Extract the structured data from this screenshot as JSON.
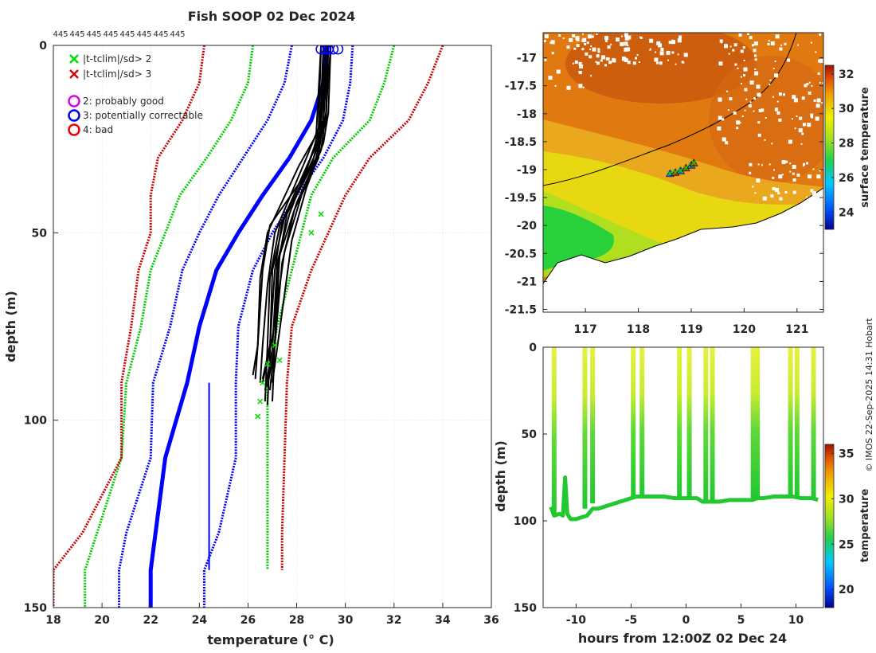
{
  "chart_data": [
    {
      "type": "line",
      "title": "Fish SOOP 02 Dec 2024",
      "xlabel": "temperature (° C)",
      "ylabel": "depth (m)",
      "xlim": [
        18,
        36
      ],
      "ylim": [
        150,
        0
      ],
      "x_ticks": [
        "18",
        "20",
        "22",
        "24",
        "26",
        "28",
        "30",
        "32",
        "34",
        "36"
      ],
      "y_ticks": [
        "0",
        "50",
        "100",
        "150"
      ],
      "top_labels": [
        "445",
        "445",
        "445",
        "445",
        "445",
        "445",
        "445",
        "445"
      ],
      "legend": [
        {
          "symbol": "×",
          "color": "#00dd00",
          "label": "|t-tclim|/sd> 2"
        },
        {
          "symbol": "×",
          "color": "#dd0000",
          "label": "|t-tclim|/sd> 3"
        },
        {
          "symbol": "○",
          "color": "#e000e0",
          "label": "2: probably good"
        },
        {
          "symbol": "○",
          "color": "#0000ee",
          "label": "3: potentially correctable"
        },
        {
          "symbol": "○",
          "color": "#ee0000",
          "label": "4: bad"
        }
      ],
      "climatology": [
        {
          "name": "clim_mean",
          "color": "#0000ff",
          "style": "solid",
          "x": [
            29.2,
            29.1,
            28.6,
            27.7,
            26.6,
            25.6,
            24.7,
            24.0,
            23.5,
            22.6,
            22.0,
            22.0
          ],
          "depth": [
            0,
            10,
            20,
            30,
            40,
            50,
            60,
            75,
            90,
            110,
            140,
            150
          ]
        },
        {
          "name": "clim_minus1sd",
          "color": "#0000ff",
          "style": "dashed",
          "x": [
            27.8,
            27.5,
            26.8,
            25.8,
            24.8,
            24.0,
            23.3,
            22.8,
            22.1,
            22.0,
            21.0,
            20.7,
            20.7
          ],
          "depth": [
            0,
            10,
            20,
            30,
            40,
            50,
            60,
            75,
            90,
            110,
            130,
            140,
            150
          ]
        },
        {
          "name": "clim_plus1sd",
          "color": "#0000ff",
          "style": "dashed",
          "x": [
            30.3,
            30.2,
            29.9,
            29.1,
            28.0,
            27.0,
            26.2,
            25.6,
            25.5,
            25.5,
            24.8,
            24.2,
            24.2
          ],
          "depth": [
            0,
            10,
            20,
            30,
            40,
            50,
            60,
            75,
            90,
            110,
            130,
            140,
            150
          ]
        },
        {
          "name": "clim_minus2sd",
          "color": "#00cc00",
          "style": "dashed",
          "x": [
            26.2,
            26.0,
            25.3,
            24.3,
            23.2,
            22.6,
            22.0,
            21.6,
            21.0,
            20.8,
            19.8,
            19.3,
            19.3
          ],
          "depth": [
            0,
            10,
            20,
            30,
            40,
            50,
            60,
            75,
            90,
            110,
            130,
            140,
            150
          ]
        },
        {
          "name": "clim_plus2sd",
          "color": "#00cc00",
          "style": "dashed",
          "x": [
            32.0,
            31.6,
            31.0,
            29.5,
            28.6,
            28.2,
            27.8,
            27.2,
            26.8,
            26.8,
            26.8,
            26.8
          ],
          "depth": [
            0,
            10,
            20,
            30,
            40,
            50,
            60,
            75,
            90,
            110,
            130,
            140
          ]
        },
        {
          "name": "clim_minus3sd",
          "color": "#cc0000",
          "style": "dashed",
          "x": [
            24.2,
            24.0,
            23.3,
            22.3,
            22.0,
            22.0,
            21.5,
            21.2,
            20.8,
            20.8,
            19.2,
            18.0,
            18.0
          ],
          "depth": [
            0,
            10,
            20,
            30,
            40,
            50,
            60,
            75,
            90,
            110,
            130,
            140,
            150
          ]
        },
        {
          "name": "clim_plus3sd",
          "color": "#cc0000",
          "style": "dashed",
          "x": [
            34.0,
            33.4,
            32.6,
            31.0,
            30.0,
            29.3,
            28.6,
            27.8,
            27.6,
            27.5,
            27.4,
            27.4
          ],
          "depth": [
            0,
            10,
            20,
            30,
            40,
            50,
            60,
            75,
            90,
            110,
            130,
            140
          ]
        }
      ],
      "profiles": [
        {
          "x": [
            29.2,
            29.1,
            28.8,
            27.6,
            27.2,
            27.1,
            27.0
          ],
          "depth": [
            0,
            20,
            30,
            45,
            60,
            80,
            95
          ]
        },
        {
          "x": [
            29.3,
            29.2,
            28.6,
            27.3,
            26.9,
            26.8,
            26.7
          ],
          "depth": [
            0,
            20,
            32,
            48,
            62,
            80,
            95
          ]
        },
        {
          "x": [
            29.4,
            29.2,
            29.0,
            27.9,
            27.4,
            27.1,
            26.9
          ],
          "depth": [
            0,
            18,
            28,
            44,
            58,
            80,
            92
          ]
        },
        {
          "x": [
            29.0,
            28.9,
            28.4,
            27.1,
            26.8,
            26.6,
            26.5
          ],
          "depth": [
            0,
            22,
            30,
            50,
            64,
            80,
            90
          ]
        },
        {
          "x": [
            29.1,
            29.0,
            28.9,
            28.2,
            27.5,
            27.0,
            26.6
          ],
          "depth": [
            0,
            15,
            30,
            40,
            55,
            78,
            90
          ]
        },
        {
          "x": [
            29.3,
            29.1,
            28.3,
            26.9,
            26.6,
            26.4,
            26.3
          ],
          "depth": [
            0,
            20,
            35,
            48,
            60,
            80,
            89
          ]
        },
        {
          "x": [
            29.2,
            29.0,
            28.7,
            27.5,
            27.0,
            26.9,
            26.8
          ],
          "depth": [
            0,
            22,
            30,
            46,
            60,
            82,
            96
          ]
        },
        {
          "x": [
            29.4,
            29.3,
            29.1,
            28.4,
            27.8,
            27.3,
            27.0
          ],
          "depth": [
            0,
            18,
            26,
            38,
            52,
            76,
            90
          ]
        },
        {
          "x": [
            29.0,
            28.8,
            28.1,
            26.8,
            26.5,
            26.4,
            26.2
          ],
          "depth": [
            0,
            24,
            32,
            50,
            62,
            80,
            88
          ]
        },
        {
          "x": [
            29.2,
            29.1,
            28.9,
            28.0,
            27.3,
            27.1,
            26.8
          ],
          "depth": [
            0,
            20,
            29,
            42,
            56,
            80,
            91
          ]
        },
        {
          "x": [
            29.3,
            29.2,
            28.5,
            27.4,
            27.1,
            26.9,
            26.6
          ],
          "depth": [
            0,
            21,
            31,
            47,
            60,
            80,
            89
          ]
        },
        {
          "x": [
            29.1,
            29.0,
            28.7,
            27.7,
            27.2,
            27.0,
            26.7
          ],
          "depth": [
            0,
            19,
            28,
            45,
            58,
            81,
            92
          ]
        }
      ],
      "flagged_surface_x": [
        29.0,
        29.2,
        29.3,
        29.5,
        29.7
      ],
      "flagged_subsurface": {
        "x": [
          27.1,
          26.8,
          26.6,
          26.5,
          26.4,
          27.3,
          28.6,
          29.0
        ],
        "depth": [
          80,
          85,
          90,
          95,
          99,
          84,
          50,
          45
        ]
      }
    },
    {
      "type": "heatmap",
      "title": "",
      "xlabel": "",
      "ylabel": "",
      "xlim": [
        116.2,
        121.5
      ],
      "ylim": [
        -21.55,
        -16.55
      ],
      "x_ticks": [
        "117",
        "118",
        "119",
        "120",
        "121"
      ],
      "y_ticks": [
        "-17",
        "-17.5",
        "-18",
        "-18.5",
        "-19",
        "-19.5",
        "-20",
        "-20.5",
        "-21",
        "-21.5"
      ],
      "colorbar_label": "surface temperature",
      "colorbar_ticks": [
        "24",
        "26",
        "28",
        "30",
        "32"
      ],
      "colorbar_range": [
        23,
        32.5
      ],
      "track_lon": [
        118.6,
        118.7,
        118.8,
        118.9,
        119.0,
        119.05
      ],
      "track_lat": [
        -19.07,
        -19.05,
        -19.02,
        -18.97,
        -18.92,
        -18.88
      ]
    },
    {
      "type": "scatter",
      "xlabel": "hours from 12:00Z 02 Dec 24",
      "ylabel": "depth (m)",
      "xlim": [
        -13,
        12.5
      ],
      "ylim": [
        150,
        0
      ],
      "x_ticks": [
        "-10",
        "-5",
        "0",
        "5",
        "10"
      ],
      "y_ticks": [
        "0",
        "50",
        "100",
        "150"
      ],
      "colorbar_label": "temperature",
      "colorbar_ticks": [
        "20",
        "25",
        "30",
        "35"
      ],
      "colorbar_range": [
        18,
        36
      ],
      "casts": [
        {
          "time": -12.0,
          "max_depth": 97
        },
        {
          "time": -9.2,
          "max_depth": 93
        },
        {
          "time": -8.5,
          "max_depth": 90
        },
        {
          "time": -4.8,
          "max_depth": 87
        },
        {
          "time": -4.0,
          "max_depth": 86
        },
        {
          "time": -0.6,
          "max_depth": 88
        },
        {
          "time": 0.3,
          "max_depth": 87
        },
        {
          "time": 1.8,
          "max_depth": 89
        },
        {
          "time": 2.4,
          "max_depth": 89
        },
        {
          "time": 6.1,
          "max_depth": 87
        },
        {
          "time": 6.5,
          "max_depth": 87
        },
        {
          "time": 9.5,
          "max_depth": 86
        },
        {
          "time": 10.1,
          "max_depth": 87
        },
        {
          "time": 11.6,
          "max_depth": 87
        }
      ],
      "bottom_trace": {
        "time": [
          -12.3,
          -12.0,
          -11.5,
          -11.2,
          -11.0,
          -10.8,
          -10.5,
          -10.0,
          -9.5,
          -9.0,
          -8.5,
          -8.0,
          -7.0,
          -6.0,
          -5.0,
          -4.5,
          -4.0,
          -3.0,
          -2.0,
          -1.0,
          0.0,
          1.0,
          1.5,
          2.0,
          3.0,
          4.0,
          5.0,
          6.0,
          6.5,
          7.0,
          8.0,
          9.0,
          9.7,
          10.5,
          11.0,
          11.5,
          12.0
        ],
        "depth": [
          92,
          97,
          96,
          97,
          75,
          96,
          99,
          99,
          98,
          97,
          93,
          93,
          91,
          89,
          87,
          86,
          86,
          86,
          86,
          87,
          87,
          87,
          89,
          89,
          89,
          88,
          88,
          88,
          87,
          87,
          86,
          86,
          86,
          87,
          87,
          87,
          88
        ]
      }
    }
  ],
  "credit": "© IMOS 22-Sep-2025 14:31 Hobart"
}
